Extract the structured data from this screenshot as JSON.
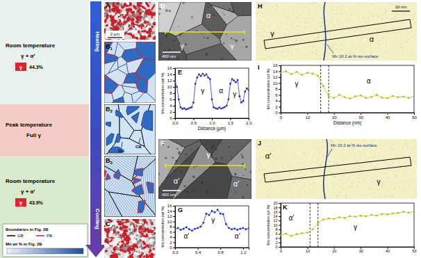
{
  "figure": {
    "panels": [
      {
        "letter": "A"
      },
      {
        "letter": "B",
        "sub": "1"
      },
      {
        "letter": "B",
        "sub": "2"
      },
      {
        "letter": "B",
        "sub": "3"
      },
      {
        "letter": "C"
      },
      {
        "letter": "D"
      },
      {
        "letter": "E"
      },
      {
        "letter": "F"
      },
      {
        "letter": "G"
      },
      {
        "letter": "H"
      },
      {
        "letter": "I"
      },
      {
        "letter": "J"
      },
      {
        "letter": "K"
      }
    ],
    "stages": [
      {
        "temperature": "Room temperature",
        "phases": "γ + α′",
        "phase": "γ",
        "fraction": "44.3%"
      },
      {
        "temperature": "Peak temperature",
        "phases": "Full γ"
      },
      {
        "temperature": "Room temperature",
        "phases": "γ + α′",
        "phase": "γ",
        "fraction": "43.9%"
      }
    ],
    "process": [
      "Heating",
      "Cooling"
    ],
    "legend": {
      "title": "Boundaries in Fig. 2B",
      "entries": [
        {
          "label": "GB",
          "color": "#000000"
        },
        {
          "label": "PB",
          "color": "#d62020"
        }
      ],
      "colorbar_title": "Mn wt % in Fig. 2B"
    },
    "schematic_labels": [
      "GB",
      "CB"
    ],
    "scale_bars": {
      "A": "2 μm",
      "D": "400 nm",
      "F": "400 nm",
      "H": "10 nm"
    },
    "micrograph_labels": {
      "D": [
        "α",
        "γ",
        "γ"
      ],
      "F": [
        "α′",
        "γ",
        "α′"
      ],
      "H": [
        "γ",
        "α"
      ],
      "J": [
        "α′",
        "γ"
      ]
    },
    "iso_surface": {
      "H": "Mn 10.2 at.% iso-surface",
      "J": "Mn 10.2 at.% iso-surface"
    }
  },
  "chart_data": [
    {
      "type": "line",
      "y_label": "Mn concentration (wt %)",
      "x_label": "Distance (μm)",
      "x": [
        0,
        0.05,
        0.1,
        0.15,
        0.2,
        0.25,
        0.3,
        0.35,
        0.4,
        0.45,
        0.5,
        0.55,
        0.6,
        0.65,
        0.7,
        0.75,
        0.8,
        0.85,
        0.9,
        0.95,
        1.0,
        1.05,
        1.1,
        1.15,
        1.2,
        1.25,
        1.3,
        1.35,
        1.4,
        1.45,
        1.5,
        1.55,
        1.6,
        1.65,
        1.7,
        1.75,
        1.8,
        1.85,
        1.9,
        1.95,
        2.0
      ],
      "values": [
        11.5,
        10,
        6,
        3.5,
        3,
        3.2,
        2.8,
        3,
        3.3,
        3.5,
        5,
        11,
        13,
        14,
        13.5,
        14.2,
        13.6,
        14,
        13,
        12.5,
        6,
        3.5,
        3.2,
        3,
        3.4,
        3.1,
        3.3,
        3.6,
        4,
        6,
        11,
        12.5,
        12,
        11.5,
        12.2,
        7,
        5,
        5.5,
        8.5,
        9.5,
        9
      ],
      "xlim": [
        0,
        2
      ],
      "ylim": [
        0,
        16
      ],
      "xticks": [
        {
          "value": 0,
          "label": "0.0"
        },
        0.5,
        {
          "value": 1,
          "label": "1.0"
        },
        1.5,
        {
          "value": 2,
          "label": "2.0"
        }
      ],
      "yticks": [
        0,
        2,
        4,
        6,
        8,
        10,
        12,
        14,
        16
      ],
      "color": "#1f2fd6",
      "marker": "circle",
      "annotations": [
        {
          "text": "γ",
          "x": 0.75,
          "y": 8
        },
        {
          "text": "α",
          "x": 1.25,
          "y": 8
        },
        {
          "text": "γ",
          "x": 1.62,
          "y": 7
        }
      ]
    },
    {
      "type": "line",
      "y_label": "Mn concentration (wt %)",
      "x": [
        0,
        0.05,
        0.1,
        0.15,
        0.2,
        0.25,
        0.3,
        0.35,
        0.4,
        0.45,
        0.5,
        0.55,
        0.6,
        0.65,
        0.7,
        0.75,
        0.8,
        0.85,
        0.9,
        0.95,
        1.0,
        1.05,
        1.1,
        1.15,
        1.2,
        1.25,
        1.3
      ],
      "values": [
        7,
        7.5,
        6.8,
        7.2,
        7.8,
        7,
        6.5,
        7.2,
        7.5,
        8,
        9.5,
        13,
        12.5,
        14,
        13.5,
        14.5,
        13,
        12.8,
        9,
        7.5,
        7,
        7.3,
        6.8,
        7.2,
        7.5,
        7,
        7.4
      ],
      "xlim": [
        0,
        1.3
      ],
      "ylim": [
        0,
        16
      ],
      "xticks": [
        {
          "value": 0,
          "label": "0.0"
        },
        0.4,
        0.8,
        1.2
      ],
      "yticks": [
        0,
        2,
        4,
        6,
        8,
        10,
        12,
        14,
        16
      ],
      "color": "#1f2fd6",
      "marker": "circle",
      "annotations": [
        {
          "text": "α′",
          "x": 0.2,
          "y": 3.5
        },
        {
          "text": "γ",
          "x": 0.67,
          "y": 9.5
        },
        {
          "text": "α′",
          "x": 1.1,
          "y": 3.5
        }
      ]
    },
    {
      "type": "line",
      "y_label": "Mn concentration (at %)",
      "x_label": "Distance (nm)",
      "x": [
        0,
        2,
        4,
        6,
        8,
        10,
        12,
        14,
        16,
        18,
        20,
        22,
        24,
        26,
        28,
        30,
        32,
        34,
        36,
        38,
        40,
        42,
        44,
        46,
        48,
        50
      ],
      "values": [
        13.5,
        14,
        13,
        13.8,
        12.8,
        13.5,
        13.2,
        12.5,
        9,
        5.5,
        5,
        6,
        5.2,
        4.8,
        5.5,
        5.8,
        5,
        5.3,
        6,
        5.1,
        4.9,
        5.6,
        5.2,
        5.4,
        5,
        5.5
      ],
      "xlim": [
        0,
        50
      ],
      "ylim": [
        0,
        16
      ],
      "xticks": [
        0,
        10,
        20,
        30,
        40,
        50
      ],
      "yticks": [
        0,
        2,
        4,
        6,
        8,
        10,
        12,
        14,
        16
      ],
      "color": "#c2b800",
      "marker": "circle",
      "boundaries": {
        "x": [
          15,
          18
        ],
        "line_style": "dashed"
      },
      "annotations": [
        {
          "text": "γ",
          "x": 6,
          "y": 9
        },
        {
          "text": "α",
          "x": 33,
          "y": 10
        }
      ]
    },
    {
      "type": "line",
      "y_label": "Mn concentration (at %)",
      "x": [
        0,
        2,
        4,
        6,
        8,
        10,
        12,
        14,
        16,
        18,
        20,
        22,
        24,
        26,
        28,
        30,
        32,
        34,
        36,
        38,
        40,
        42,
        44,
        46,
        48,
        50
      ],
      "values": [
        5.5,
        6,
        5,
        5.8,
        6.2,
        6.5,
        8,
        11,
        12.5,
        13,
        12.8,
        13.5,
        13.2,
        14,
        13.8,
        14.2,
        14,
        14.6,
        14.3,
        15,
        14.8,
        15.2,
        15.5,
        16,
        15.6,
        16.2
      ],
      "xlim": [
        0,
        50
      ],
      "ylim": [
        0,
        20
      ],
      "xticks": [
        0,
        10,
        20,
        30,
        40,
        50
      ],
      "yticks": [
        0,
        2,
        4,
        6,
        8,
        10,
        12,
        14,
        16,
        18,
        20
      ],
      "color": "#c2b800",
      "marker": "circle",
      "boundaries": {
        "x": [
          11,
          14
        ],
        "line_style": "dashed"
      },
      "annotations": [
        {
          "text": "α′",
          "x": 4,
          "y": 12
        },
        {
          "text": "γ",
          "x": 28,
          "y": 8
        }
      ]
    }
  ]
}
